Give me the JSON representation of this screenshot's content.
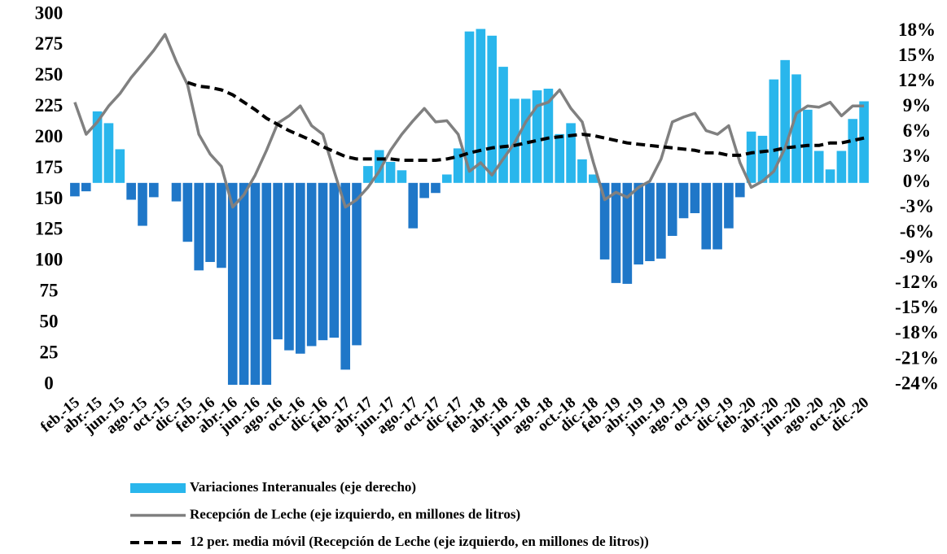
{
  "chart_data": {
    "type": "bar_line",
    "categories": [
      "feb.-15",
      null,
      "abr.-15",
      null,
      "jun.-15",
      null,
      "ago.-15",
      null,
      "oct.-15",
      null,
      "dic.-15",
      null,
      "feb.-16",
      null,
      "abr.-16",
      null,
      "jun.-16",
      null,
      "ago.-16",
      null,
      "oct.-16",
      null,
      "dic.-16",
      null,
      "feb.-17",
      null,
      "abr.-17",
      null,
      "jun.-17",
      null,
      "ago.-17",
      null,
      "oct.-17",
      null,
      "dic.-17",
      null,
      "feb.-18",
      null,
      "abr.-18",
      null,
      "jun.-18",
      null,
      "ago.-18",
      null,
      "oct.-18",
      null,
      "dic.-18",
      null,
      "feb.-19",
      null,
      "abr.-19",
      null,
      "jun.-19",
      null,
      "ago.-19",
      null,
      "oct.-19",
      null,
      "dic.-19",
      null,
      "feb.-20",
      null,
      "abr.-20",
      null,
      "jun.-20",
      null,
      "ago.-20",
      null,
      "oct.-20",
      null,
      "dic.-20"
    ],
    "series": [
      {
        "name": "Variaciones Interanuales (eje derecho)",
        "kind": "bar",
        "axis": "y2",
        "color": "#29b6ec",
        "negative_color": "#1f77c8",
        "values": [
          -1.6,
          -1.0,
          8.5,
          7.1,
          4.0,
          -2.0,
          -5.1,
          -1.7,
          0,
          -2.2,
          -7.0,
          -10.4,
          -9.4,
          -10.1,
          -24,
          -24,
          -24,
          -24,
          -18.6,
          -19.9,
          -20.3,
          -19.4,
          -18.7,
          -18.4,
          -22.2,
          -19.3,
          2.0,
          3.9,
          2.5,
          1.5,
          -5.4,
          -1.8,
          -1.2,
          1.0,
          4.1,
          18.0,
          18.3,
          17.5,
          13.8,
          10.0,
          10.0,
          11.0,
          11.2,
          5.8,
          7.1,
          2.8,
          1.0,
          -9.1,
          -11.9,
          -12.0,
          -9.7,
          -9.3,
          -9.0,
          -6.3,
          -4.2,
          -3.6,
          -7.9,
          -7.9,
          -5.4,
          -1.7,
          6.1,
          5.6,
          12.3,
          14.6,
          12.9,
          8.7,
          3.8,
          1.6,
          3.8,
          7.6,
          9.7
        ]
      },
      {
        "name": "Recepción de Leche (eje izquierdo, en millones de litros)",
        "kind": "line",
        "color": "#808080",
        "dash": "solid",
        "values": [
          229,
          203,
          213,
          226,
          236,
          249,
          260,
          271,
          284,
          262,
          243,
          203,
          187,
          177,
          144,
          154,
          170,
          190,
          212,
          218,
          226,
          210,
          203,
          173,
          144,
          150,
          160,
          173,
          190,
          203,
          214,
          224,
          213,
          214,
          203,
          173,
          180,
          170,
          183,
          196,
          213,
          226,
          229,
          239,
          224,
          213,
          180,
          150,
          156,
          152,
          160,
          165,
          183,
          213,
          217,
          220,
          206,
          203,
          210,
          180,
          160,
          165,
          173,
          192,
          220,
          226,
          225,
          229,
          218,
          226,
          226
        ]
      },
      {
        "name": "12 per. media móvil (Recepción de Leche (eje izquierdo, en millones de litros))",
        "kind": "line",
        "color": "#000000",
        "dash": "dashed",
        "values": [
          null,
          null,
          null,
          null,
          null,
          null,
          null,
          null,
          null,
          null,
          245,
          242,
          241,
          239,
          235,
          229,
          223,
          216,
          211,
          206,
          202,
          198,
          193,
          189,
          185,
          183,
          183,
          183,
          183,
          182,
          182,
          182,
          182,
          183,
          185,
          188,
          190,
          192,
          193,
          194,
          196,
          198,
          200,
          201,
          202,
          203,
          202,
          200,
          198,
          196,
          195,
          194,
          193,
          192,
          191,
          190,
          188,
          188,
          186,
          186,
          188,
          189,
          190,
          192,
          193,
          194,
          194,
          196,
          196,
          198,
          200
        ]
      }
    ],
    "ylim": [
      0,
      300
    ],
    "yticks": [
      0,
      25,
      50,
      75,
      100,
      125,
      150,
      175,
      200,
      225,
      250,
      275,
      300
    ],
    "y2lim": [
      -24,
      20
    ],
    "y2ticks": [
      {
        "value": -24,
        "label": "-24%"
      },
      {
        "value": -21,
        "label": "-21%"
      },
      {
        "value": -18,
        "label": "-18%"
      },
      {
        "value": -15,
        "label": "-15%"
      },
      {
        "value": -12,
        "label": "-12%"
      },
      {
        "value": -9,
        "label": "-9%"
      },
      {
        "value": -6,
        "label": "-6%"
      },
      {
        "value": -3,
        "label": "-3%"
      },
      {
        "value": 0,
        "label": "0%"
      },
      {
        "value": 3,
        "label": "3%"
      },
      {
        "value": 6,
        "label": "6%"
      },
      {
        "value": 9,
        "label": "9%"
      },
      {
        "value": 12,
        "label": "12%"
      },
      {
        "value": 15,
        "label": "15%"
      },
      {
        "value": 18,
        "label": "18%"
      }
    ],
    "grid": false,
    "legend": "bottom"
  }
}
